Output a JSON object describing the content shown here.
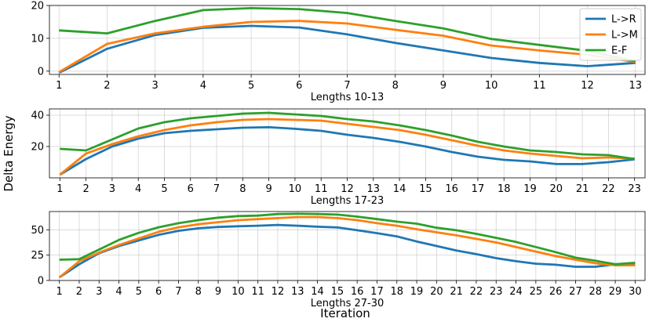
{
  "figure": {
    "ylabel": "Delta Energy",
    "xlabel": "Iteration"
  },
  "legend": [
    {
      "name": "L->R",
      "color": "#1f77b4"
    },
    {
      "name": "L->M",
      "color": "#ff7f0e"
    },
    {
      "name": "E-F",
      "color": "#2ca02c"
    }
  ],
  "chart_data": [
    {
      "type": "line",
      "xlabel": "Lengths 10-13",
      "ylabel": "",
      "x": [
        1,
        2,
        3,
        4,
        5,
        6,
        7,
        8,
        9,
        10,
        11,
        12,
        13
      ],
      "xlim": [
        0.8,
        13.2
      ],
      "ylim": [
        -1,
        20
      ],
      "yticks": [
        0,
        10,
        20
      ],
      "grid": true,
      "legend": "top-right",
      "series": [
        {
          "name": "L->R",
          "color": "#1f77b4",
          "values": [
            -0.5,
            6.8,
            11.0,
            13.2,
            13.8,
            13.3,
            11.2,
            8.6,
            6.3,
            4.0,
            2.5,
            1.5,
            2.5
          ]
        },
        {
          "name": "L->M",
          "color": "#ff7f0e",
          "values": [
            -0.3,
            8.3,
            11.5,
            13.5,
            15.0,
            15.3,
            14.5,
            12.6,
            10.8,
            7.8,
            6.3,
            5.0,
            2.8
          ]
        },
        {
          "name": "E-F",
          "color": "#2ca02c",
          "values": [
            12.4,
            11.5,
            15.3,
            18.6,
            19.2,
            18.9,
            17.7,
            15.3,
            13.0,
            9.8,
            8.0,
            6.2,
            3.0
          ]
        }
      ]
    },
    {
      "type": "line",
      "xlabel": "Lengths 17-23",
      "ylabel": "",
      "x": [
        1,
        2,
        3,
        4,
        5,
        6,
        7,
        8,
        9,
        10,
        11,
        12,
        13,
        14,
        15,
        16,
        17,
        18,
        19,
        20,
        21,
        22,
        23
      ],
      "xlim": [
        0.6,
        23.4
      ],
      "ylim": [
        0,
        44
      ],
      "yticks": [
        20,
        40
      ],
      "grid": true,
      "series": [
        {
          "name": "L->R",
          "color": "#1f77b4",
          "values": [
            2,
            12,
            20,
            25,
            28.5,
            30,
            31,
            32,
            32.3,
            31.3,
            30,
            27.5,
            25.5,
            23,
            20,
            16.5,
            13.5,
            11.5,
            10.5,
            8.8,
            8.8,
            10,
            11.8
          ]
        },
        {
          "name": "L->M",
          "color": "#ff7f0e",
          "values": [
            2,
            15.5,
            21.5,
            26.5,
            30.5,
            33.5,
            35.5,
            37,
            37.5,
            37,
            36.5,
            34.5,
            32.5,
            30.5,
            27.5,
            24,
            20.5,
            17.5,
            15.5,
            14,
            12.5,
            13,
            12.3
          ]
        },
        {
          "name": "E-F",
          "color": "#2ca02c",
          "values": [
            18.5,
            17.5,
            24.5,
            31.5,
            35.5,
            38,
            39.5,
            41,
            41.5,
            40.5,
            39.5,
            37.5,
            36,
            33.5,
            30.5,
            27,
            23,
            20,
            17.5,
            16.5,
            15,
            14.5,
            12
          ]
        }
      ]
    },
    {
      "type": "line",
      "xlabel": "Lengths 27-30",
      "ylabel": "",
      "x": [
        1,
        2,
        3,
        4,
        5,
        6,
        7,
        8,
        9,
        10,
        11,
        12,
        13,
        14,
        15,
        16,
        17,
        18,
        19,
        20,
        21,
        22,
        23,
        24,
        25,
        26,
        27,
        28,
        29,
        30
      ],
      "xlim": [
        0.5,
        30.5
      ],
      "ylim": [
        0,
        68
      ],
      "yticks": [
        0,
        25,
        50
      ],
      "grid": true,
      "series": [
        {
          "name": "L->R",
          "color": "#1f77b4",
          "values": [
            3,
            16,
            27,
            34,
            39.5,
            45,
            49,
            51.5,
            52.8,
            53.5,
            54,
            54.8,
            54,
            53,
            52.3,
            49.5,
            46.7,
            43.5,
            38.5,
            34,
            29.5,
            26,
            22,
            19,
            16.5,
            15.5,
            13.5,
            13.5,
            16,
            16
          ]
        },
        {
          "name": "L->M",
          "color": "#ff7f0e",
          "values": [
            3,
            19,
            27.5,
            35,
            41.5,
            48,
            52.5,
            55.5,
            57.5,
            59.5,
            60.5,
            61.5,
            62.5,
            62.5,
            61.5,
            59.5,
            56.5,
            54,
            50.5,
            47.5,
            44.5,
            41,
            37.5,
            33,
            28.5,
            24,
            20.5,
            17,
            15,
            15
          ]
        },
        {
          "name": "E-F",
          "color": "#2ca02c",
          "values": [
            20.5,
            21,
            30.5,
            40,
            47,
            52.5,
            56.5,
            59.5,
            62,
            63.5,
            64,
            65.5,
            65.8,
            65.5,
            65,
            63,
            60.5,
            58,
            56,
            52,
            49.5,
            46,
            42,
            38,
            33,
            28,
            22.5,
            19.5,
            16,
            17.5
          ]
        }
      ]
    }
  ]
}
